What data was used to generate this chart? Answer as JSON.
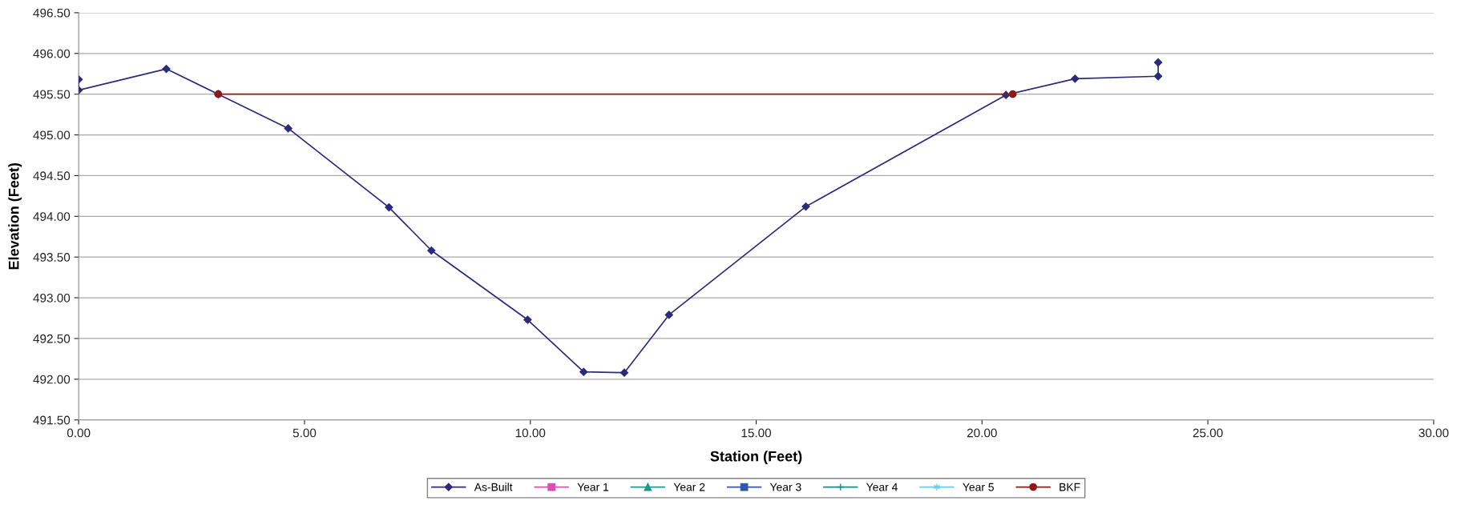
{
  "chart_data": {
    "type": "line",
    "xlabel": "Station (Feet)",
    "ylabel": "Elevation (Feet)",
    "xlim": [
      0,
      30
    ],
    "ylim": [
      491.5,
      496.5
    ],
    "xticks": [
      {
        "value": 0,
        "label": "0.00"
      },
      {
        "value": 5,
        "label": "5.00"
      },
      {
        "value": 10,
        "label": "10.00"
      },
      {
        "value": 15,
        "label": "15.00"
      },
      {
        "value": 20,
        "label": "20.00"
      },
      {
        "value": 25,
        "label": "25.00"
      },
      {
        "value": 30,
        "label": "30.00"
      }
    ],
    "yticks": [
      {
        "value": 491.5,
        "label": "491.50"
      },
      {
        "value": 492,
        "label": "492.00"
      },
      {
        "value": 492.5,
        "label": "492.50"
      },
      {
        "value": 493,
        "label": "493.00"
      },
      {
        "value": 493.5,
        "label": "493.50"
      },
      {
        "value": 494,
        "label": "494.00"
      },
      {
        "value": 494.5,
        "label": "494.50"
      },
      {
        "value": 495,
        "label": "495.00"
      },
      {
        "value": 495.5,
        "label": "495.50"
      },
      {
        "value": 496,
        "label": "496.00"
      },
      {
        "value": 496.5,
        "label": "496.50"
      }
    ],
    "grid": "y",
    "legend": "bottom",
    "series": [
      {
        "name": "As-Built",
        "color": "#2b2b7c",
        "marker": "diamond",
        "x": [
          0,
          0,
          1.94,
          3.09,
          4.64,
          6.87,
          7.81,
          9.94,
          11.18,
          12.08,
          13.07,
          16.1,
          20.53,
          22.06,
          23.9,
          23.9
        ],
        "values": [
          495.68,
          495.55,
          495.81,
          495.5,
          495.08,
          494.11,
          493.58,
          492.73,
          492.09,
          492.08,
          492.79,
          494.12,
          495.49,
          495.69,
          495.72,
          495.89
        ]
      },
      {
        "name": "Year 1",
        "color": "#d94fb4",
        "marker": "square"
      },
      {
        "name": "Year 2",
        "color": "#1a9a8a",
        "marker": "triangle"
      },
      {
        "name": "Year 3",
        "color": "#3355aa",
        "marker": "square"
      },
      {
        "name": "Year 4",
        "color": "#1a8a8a",
        "marker": "cross"
      },
      {
        "name": "Year 5",
        "color": "#66ccee",
        "marker": "star"
      },
      {
        "name": "BKF",
        "color": "#8b1a1a",
        "marker": "circle",
        "x": [
          3.09,
          20.68
        ],
        "values": [
          495.5,
          495.5
        ]
      }
    ]
  }
}
